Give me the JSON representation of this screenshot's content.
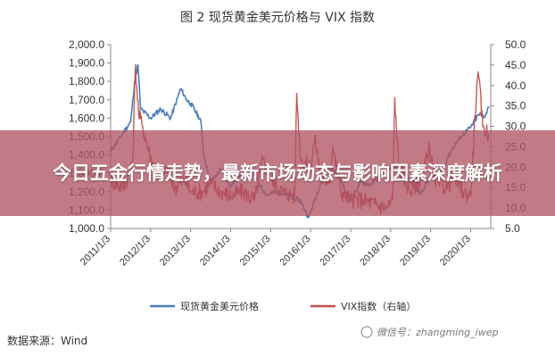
{
  "figure_title": "图 2    现货黄金美元价格与 VIX 指数",
  "source_note": "数据来源：Wind",
  "watermark": "微信号：zhangming_iwep",
  "overlay": {
    "title": "今日五金行情走势，最新市场动态与影响因素深度解析"
  },
  "colors": {
    "gold": "#4a7ebb",
    "vix": "#c0504d",
    "banner": "#b05564"
  },
  "chart_data": {
    "type": "line",
    "title": "现货黄金美元价格与 VIX 指数",
    "x_categories": [
      "2011/1/3",
      "2012/1/3",
      "2013/1/3",
      "2014/1/3",
      "2015/1/3",
      "2016/1/3",
      "2017/1/3",
      "2018/1/3",
      "2019/1/3",
      "2020/1/3"
    ],
    "y_left": {
      "ticks": [
        "1,000.0",
        "1,100.0",
        "1,200.0",
        "1,300.0",
        "1,400.0",
        "1,500.0",
        "1,600.0",
        "1,700.0",
        "1,800.0",
        "1,900.0",
        "2,000.0"
      ],
      "range": [
        1000,
        2000
      ]
    },
    "y_right": {
      "ticks": [
        "5.0",
        "10.0",
        "15.0",
        "20.0",
        "25.0",
        "30.0",
        "35.0",
        "40.0",
        "45.0",
        "50.0"
      ],
      "range": [
        5,
        50
      ]
    },
    "grid": false,
    "legend_position": "bottom",
    "series": [
      {
        "name": "现货黄金美元价格",
        "axis": "left",
        "x": [
          2011.0,
          2011.25,
          2011.5,
          2011.6,
          2011.68,
          2011.75,
          2012.0,
          2012.25,
          2012.5,
          2012.75,
          2012.9,
          2013.0,
          2013.25,
          2013.33,
          2013.5,
          2013.75,
          2014.0,
          2014.25,
          2014.5,
          2014.75,
          2014.9,
          2015.0,
          2015.25,
          2015.5,
          2015.75,
          2015.95,
          2016.0,
          2016.25,
          2016.5,
          2016.75,
          2016.95,
          2017.0,
          2017.25,
          2017.5,
          2017.75,
          2018.0,
          2018.25,
          2018.5,
          2018.75,
          2019.0,
          2019.25,
          2019.5,
          2019.75,
          2020.0,
          2020.2,
          2020.35,
          2020.45
        ],
        "values": [
          1420,
          1500,
          1580,
          1800,
          1890,
          1650,
          1600,
          1650,
          1600,
          1760,
          1700,
          1680,
          1590,
          1400,
          1250,
          1320,
          1230,
          1300,
          1320,
          1230,
          1180,
          1190,
          1200,
          1170,
          1150,
          1060,
          1090,
          1250,
          1340,
          1270,
          1150,
          1160,
          1250,
          1240,
          1290,
          1320,
          1330,
          1250,
          1190,
          1290,
          1300,
          1420,
          1500,
          1550,
          1620,
          1610,
          1660
        ]
      },
      {
        "name": "VIX指数（右轴）",
        "axis": "right",
        "x": [
          2011.0,
          2011.3,
          2011.55,
          2011.62,
          2011.7,
          2011.8,
          2011.95,
          2012.2,
          2012.4,
          2012.6,
          2012.85,
          2013.0,
          2013.3,
          2013.5,
          2013.75,
          2014.0,
          2014.3,
          2014.6,
          2014.8,
          2015.0,
          2015.3,
          2015.6,
          2015.65,
          2015.75,
          2016.0,
          2016.1,
          2016.3,
          2016.5,
          2016.55,
          2016.75,
          2017.0,
          2017.3,
          2017.6,
          2017.9,
          2018.05,
          2018.1,
          2018.2,
          2018.5,
          2018.8,
          2018.97,
          2019.1,
          2019.4,
          2019.6,
          2019.8,
          2020.0,
          2020.15,
          2020.2,
          2020.3,
          2020.45
        ],
        "values": [
          17,
          15,
          20,
          45,
          33,
          30,
          24,
          17,
          20,
          15,
          17,
          14,
          14,
          16,
          14,
          13,
          14,
          12,
          22,
          17,
          14,
          13,
          38,
          22,
          20,
          27,
          16,
          18,
          25,
          14,
          12,
          12,
          11,
          10,
          12,
          37,
          20,
          14,
          18,
          25,
          17,
          15,
          18,
          14,
          13,
          40,
          42,
          30,
          28
        ]
      }
    ]
  }
}
